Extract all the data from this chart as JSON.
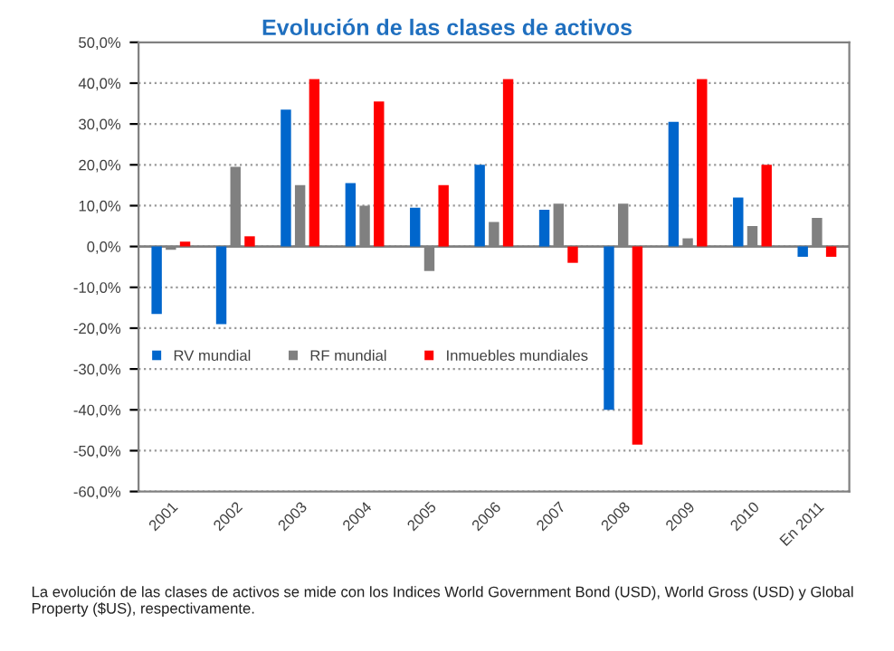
{
  "chart_data": {
    "type": "bar",
    "title": "Evolución de las clases de activos",
    "categories": [
      "2001",
      "2002",
      "2003",
      "2004",
      "2005",
      "2006",
      "2007",
      "2008",
      "2009",
      "2010",
      "En 2011"
    ],
    "series": [
      {
        "name": "RV mundial",
        "color": "#0066cc",
        "values": [
          -16.5,
          -19,
          33.5,
          15.5,
          9.5,
          20,
          9,
          -40,
          30.5,
          12,
          -2.5
        ]
      },
      {
        "name": "RF mundial",
        "color": "#808080",
        "values": [
          -0.8,
          19.5,
          15,
          10,
          -6,
          6,
          10.5,
          10.5,
          2,
          5,
          7
        ]
      },
      {
        "name": "Inmuebles mundiales",
        "color": "#ff0000",
        "values": [
          1.2,
          2.5,
          41,
          35.5,
          15,
          41,
          -4,
          -48.5,
          41,
          20,
          -2.5
        ]
      }
    ],
    "ylim": [
      -60,
      50
    ],
    "yticks": [
      {
        "value": -60,
        "label": "-60,0%"
      },
      {
        "value": -50,
        "label": "-50,0%"
      },
      {
        "value": -40,
        "label": "-40,0%"
      },
      {
        "value": -30,
        "label": "-30,0%"
      },
      {
        "value": -20,
        "label": "-20,0%"
      },
      {
        "value": -10,
        "label": "-10,0%"
      },
      {
        "value": 0,
        "label": "0,0%"
      },
      {
        "value": 10,
        "label": "10,0%"
      },
      {
        "value": 20,
        "label": "20,0%"
      },
      {
        "value": 30,
        "label": "30,0%"
      },
      {
        "value": 40,
        "label": "40,0%"
      },
      {
        "value": 50,
        "label": "50,0%"
      }
    ],
    "grid": "y",
    "legend": "left",
    "annotations": [
      "La evolución de las clases de activos se mide con los Indices World Government Bond (USD), World Gross (USD) y Global Property ($US), respectivamente."
    ]
  }
}
